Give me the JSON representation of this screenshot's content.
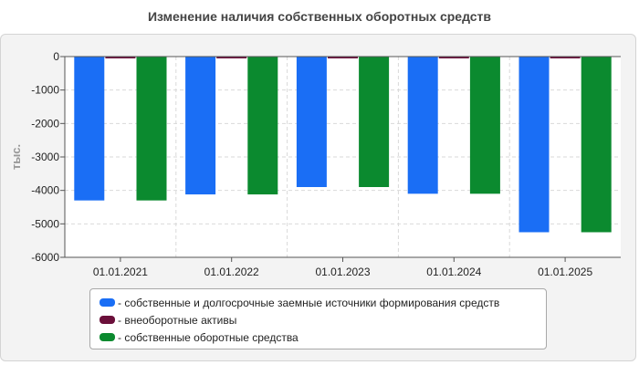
{
  "title": "Изменение наличия собственных оборотных средств",
  "chart_data": {
    "type": "bar",
    "title": "Изменение наличия собственных оборотных средств",
    "ylabel": "тыс.",
    "xlabel": "",
    "categories": [
      "01.01.2021",
      "01.01.2022",
      "01.01.2023",
      "01.01.2024",
      "01.01.2025"
    ],
    "ylim": [
      -6000,
      0
    ],
    "yticks": [
      0,
      -1000,
      -2000,
      -3000,
      -4000,
      -5000,
      -6000
    ],
    "grid": true,
    "legend_position": "bottom",
    "series": [
      {
        "name": "- собственные и долгосрочные заемные источники формирования средств",
        "color": "#1a6ef5",
        "values": [
          -4300,
          -4120,
          -3900,
          -4100,
          -5250
        ]
      },
      {
        "name": "- внеоборотные активы",
        "color": "#6b0f3a",
        "values": [
          -50,
          -50,
          -50,
          -50,
          -50
        ]
      },
      {
        "name": "- собственные оборотные средства",
        "color": "#0b8a2f",
        "values": [
          -4300,
          -4120,
          -3900,
          -4100,
          -5250
        ]
      }
    ]
  }
}
